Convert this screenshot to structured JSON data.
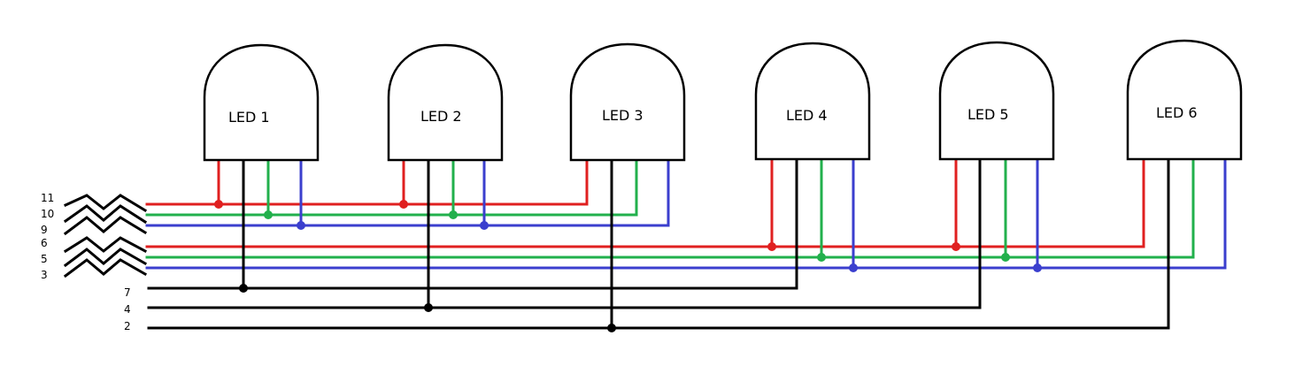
{
  "colors": {
    "red": "#e02020",
    "green": "#22b04c",
    "blue": "#3b3fce",
    "black": "#000000"
  },
  "leds": [
    {
      "label": "LED 1",
      "pins": [
        "red",
        "black",
        "green",
        "blue"
      ]
    },
    {
      "label": "LED 2",
      "pins": [
        "red",
        "black",
        "green",
        "blue"
      ]
    },
    {
      "label": "LED 3",
      "pins": [
        "red",
        "black",
        "green",
        "blue"
      ]
    },
    {
      "label": "LED 4",
      "pins": [
        "red",
        "black",
        "green",
        "blue"
      ]
    },
    {
      "label": "LED 5",
      "pins": [
        "red",
        "black",
        "green",
        "blue"
      ]
    },
    {
      "label": "LED 6",
      "pins": [
        "red",
        "black",
        "green",
        "blue"
      ]
    }
  ],
  "pin_labels": {
    "group1": [
      "11",
      "10",
      "9"
    ],
    "group2": [
      "6",
      "5",
      "3"
    ],
    "commons": [
      "7",
      "4",
      "2"
    ]
  },
  "connections": {
    "group1": {
      "red": "11",
      "green": "10",
      "blue": "9",
      "leds": [
        "LED 1",
        "LED 2",
        "LED 3"
      ]
    },
    "group2": {
      "red": "6",
      "green": "5",
      "blue": "3",
      "leds": [
        "LED 4",
        "LED 5",
        "LED 6"
      ]
    },
    "commons": [
      {
        "pin": "7",
        "leds": [
          "LED 1",
          "LED 4"
        ]
      },
      {
        "pin": "4",
        "leds": [
          "LED 2",
          "LED 5"
        ]
      },
      {
        "pin": "2",
        "leds": [
          "LED 3",
          "LED 6"
        ]
      }
    ]
  }
}
